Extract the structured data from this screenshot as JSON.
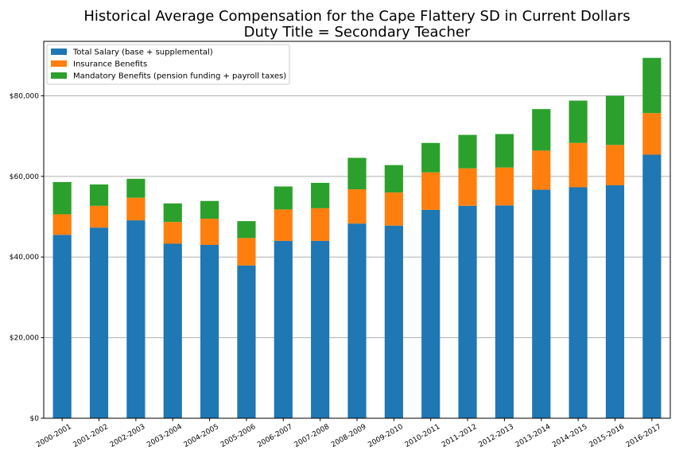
{
  "chart_data": {
    "type": "bar",
    "stacked": true,
    "title": "Historical Average Compensation for the Cape Flattery SD in Current Dollars",
    "subtitle": "Duty Title = Secondary Teacher",
    "xlabel": "",
    "ylabel": "",
    "ylim": [
      0,
      93500
    ],
    "yticks": [
      0,
      20000,
      40000,
      60000,
      80000
    ],
    "ytick_labels": [
      "$0",
      "$20,000",
      "$40,000",
      "$60,000",
      "$80,000"
    ],
    "grid": "horizontal",
    "legend_position": "top-left",
    "categories": [
      "2000-2001",
      "2001-2002",
      "2002-2003",
      "2003-2004",
      "2004-2005",
      "2005-2006",
      "2006-2007",
      "2007-2008",
      "2008-2009",
      "2009-2010",
      "2010-2011",
      "2011-2012",
      "2012-2013",
      "2013-2014",
      "2014-2015",
      "2015-2016",
      "2016-2017"
    ],
    "series": [
      {
        "name": "Total Salary (base + supplemental)",
        "color": "#1f77b4",
        "values": [
          45500,
          47300,
          49100,
          43300,
          43000,
          37900,
          44000,
          44000,
          48300,
          47800,
          51700,
          52700,
          52800,
          56700,
          57300,
          57800,
          65400
        ]
      },
      {
        "name": "Insurance Benefits",
        "color": "#ff7f0e",
        "values": [
          5100,
          5400,
          5600,
          5400,
          6500,
          6800,
          7800,
          8100,
          8500,
          8200,
          9300,
          9300,
          9400,
          9700,
          11000,
          10000,
          10300
        ]
      },
      {
        "name": "Mandatory Benefits (pension funding + payroll taxes)",
        "color": "#2ca02c",
        "values": [
          8000,
          5300,
          4700,
          4600,
          4400,
          4200,
          5700,
          6300,
          7800,
          6800,
          7300,
          8300,
          8300,
          10300,
          10500,
          12200,
          13700
        ]
      }
    ]
  }
}
